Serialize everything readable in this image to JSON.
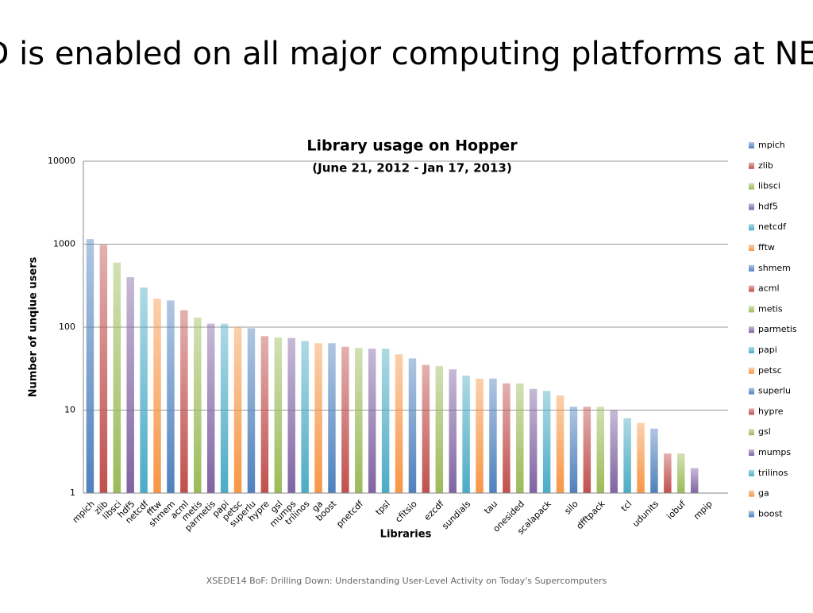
{
  "slide_title": "ALTD is enabled on all major computing platforms at NERSC",
  "footer": "XSEDE14 BoF: Drilling Down: Understanding User-Level Activity on Today's Supercomputers",
  "chart_data": {
    "type": "bar",
    "title": "Library usage on Hopper",
    "subtitle": "(June 21, 2012 - Jan 17, 2013)",
    "x_label": "Libraries",
    "y_label": "Number of unqiue users",
    "categories": [
      "mpich",
      "zlib",
      "libsci",
      "hdf5",
      "netcdf",
      "fftw",
      "shmem",
      "acml",
      "metis",
      "parmetis",
      "papi",
      "petsc",
      "superlu",
      "hypre",
      "gsl",
      "mumps",
      "trilinos",
      "ga",
      "boost",
      null,
      "pnetcdf",
      null,
      "tpsl",
      null,
      "cfitsio",
      null,
      "ezcdf",
      null,
      "sundials",
      null,
      "tau",
      null,
      "onesided",
      null,
      "scalapack",
      null,
      "silo",
      null,
      "dfftpack",
      null,
      "tcl",
      null,
      "udunits",
      null,
      "iobuf",
      null,
      "mpip",
      null
    ],
    "values": [
      1150,
      980,
      600,
      400,
      300,
      220,
      210,
      160,
      130,
      110,
      110,
      100,
      97,
      78,
      75,
      74,
      68,
      64,
      64,
      58,
      56,
      55,
      55,
      47,
      42,
      35,
      34,
      31,
      26,
      24,
      24,
      21,
      21,
      18,
      17,
      15,
      11,
      11,
      11,
      10,
      8,
      7,
      6,
      3,
      3,
      2,
      1,
      1
    ],
    "colors": [
      "#4f81bd",
      "#c0504d",
      "#9bbb59",
      "#8064a2",
      "#4bacc6",
      "#f79646"
    ],
    "log_scale": true,
    "ylim": [
      1,
      10000
    ],
    "yticks": [
      1,
      10,
      100,
      1000,
      10000
    ],
    "grid": true,
    "legend": "right"
  }
}
